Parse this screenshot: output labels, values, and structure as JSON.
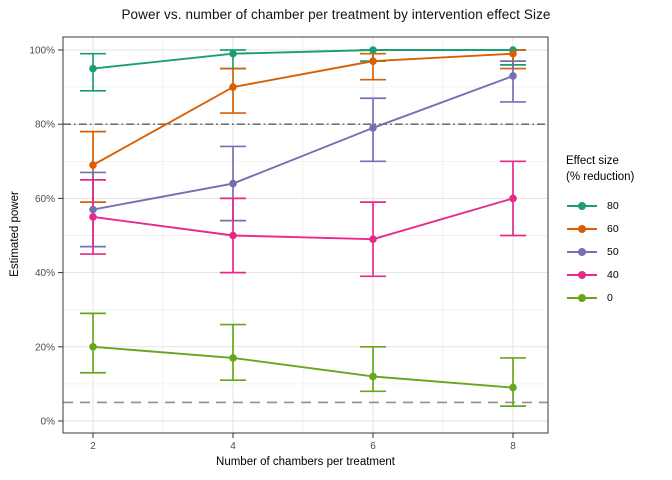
{
  "chart_data": {
    "type": "line",
    "title": "Power vs. number of chamber per treatment by intervention effect Size",
    "xlabel": "Number of chambers per treatment",
    "ylabel": "Estimated power",
    "x_ticks": [
      "2",
      "4",
      "6",
      "8"
    ],
    "y_ticks": [
      "0%",
      "20%",
      "40%",
      "60%",
      "80%",
      "100%"
    ],
    "xlim": [
      2,
      8
    ],
    "ylim": [
      0,
      100
    ],
    "grid": "major+minor",
    "legend": {
      "position": "right",
      "title_lines": [
        "Effect size",
        "(% reduction)"
      ]
    },
    "reference_lines": [
      {
        "y": 80,
        "style": "dashdot",
        "color": "#5b5b5b"
      },
      {
        "y": 5,
        "style": "dashed",
        "color": "#909090"
      }
    ],
    "series": [
      {
        "name": "80",
        "color": "#1B9E77",
        "points": [
          {
            "x": 2,
            "est": 95,
            "lo": 89,
            "hi": 99
          },
          {
            "x": 4,
            "est": 99,
            "lo": 95,
            "hi": 100
          },
          {
            "x": 6,
            "est": 100,
            "lo": 97,
            "hi": 100
          },
          {
            "x": 8,
            "est": 100,
            "lo": 96,
            "hi": 100
          }
        ]
      },
      {
        "name": "60",
        "color": "#D95F02",
        "points": [
          {
            "x": 2,
            "est": 69,
            "lo": 59,
            "hi": 78
          },
          {
            "x": 4,
            "est": 90,
            "lo": 83,
            "hi": 95
          },
          {
            "x": 6,
            "est": 97,
            "lo": 92,
            "hi": 99
          },
          {
            "x": 8,
            "est": 99,
            "lo": 95,
            "hi": 100
          }
        ]
      },
      {
        "name": "50",
        "color": "#7570B3",
        "points": [
          {
            "x": 2,
            "est": 57,
            "lo": 47,
            "hi": 67
          },
          {
            "x": 4,
            "est": 64,
            "lo": 54,
            "hi": 74
          },
          {
            "x": 6,
            "est": 79,
            "lo": 70,
            "hi": 87
          },
          {
            "x": 8,
            "est": 93,
            "lo": 86,
            "hi": 97
          }
        ]
      },
      {
        "name": "40",
        "color": "#E7298A",
        "points": [
          {
            "x": 2,
            "est": 55,
            "lo": 45,
            "hi": 65
          },
          {
            "x": 4,
            "est": 50,
            "lo": 40,
            "hi": 60
          },
          {
            "x": 6,
            "est": 49,
            "lo": 39,
            "hi": 59
          },
          {
            "x": 8,
            "est": 60,
            "lo": 50,
            "hi": 70
          }
        ]
      },
      {
        "name": "0",
        "color": "#66A61E",
        "points": [
          {
            "x": 2,
            "est": 20,
            "lo": 13,
            "hi": 29
          },
          {
            "x": 4,
            "est": 17,
            "lo": 11,
            "hi": 26
          },
          {
            "x": 6,
            "est": 12,
            "lo": 8,
            "hi": 20
          },
          {
            "x": 8,
            "est": 9,
            "lo": 4,
            "hi": 17
          }
        ]
      }
    ]
  }
}
